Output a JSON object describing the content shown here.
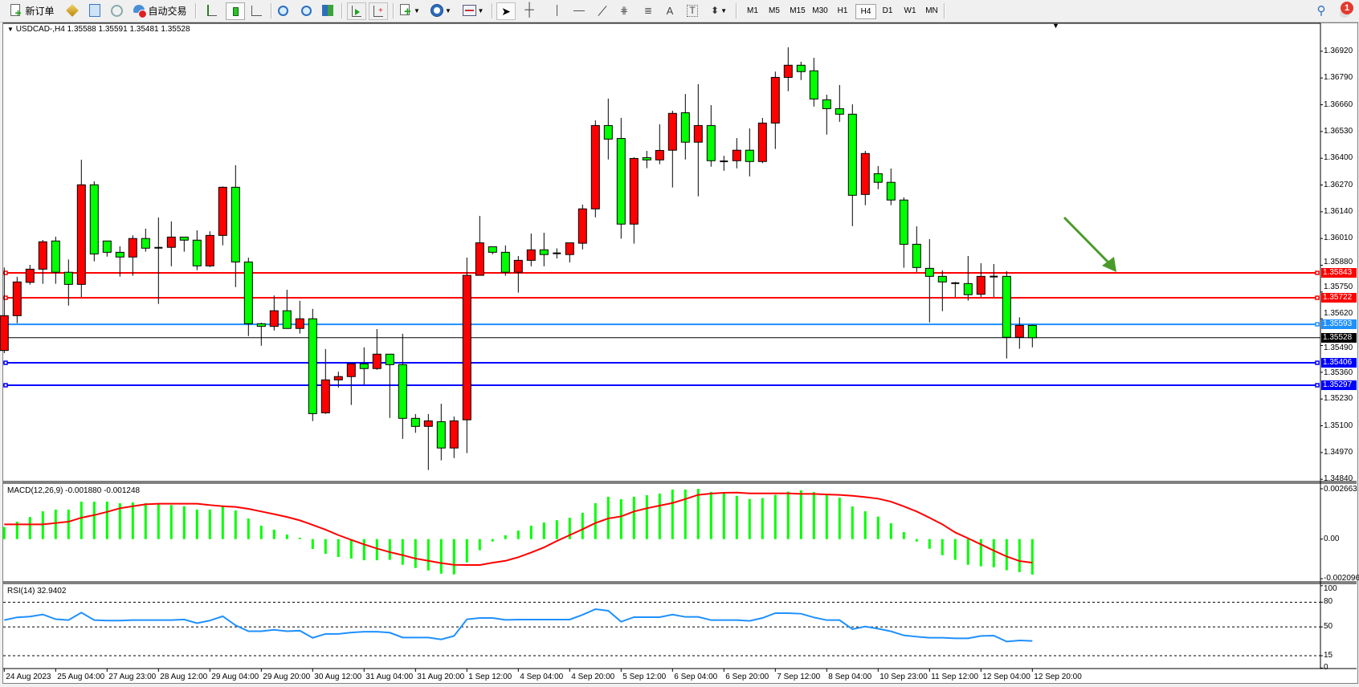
{
  "toolbar": {
    "new_order_label": "新订单",
    "auto_trading_label": "自动交易",
    "timeframes": [
      "M1",
      "M5",
      "M15",
      "M30",
      "H1",
      "H4",
      "D1",
      "W1",
      "MN"
    ],
    "active_timeframe": "H4",
    "notification_count": "1",
    "icons": [
      "new-order-icon",
      "market-watch-icon",
      "navigator-icon",
      "signals-icon",
      "auto-trading-icon",
      "bar-chart-icon",
      "candlestick-chart-icon",
      "line-chart-icon",
      "zoom-in-icon",
      "zoom-out-icon",
      "tile-windows-icon",
      "auto-scroll-icon",
      "chart-shift-icon",
      "indicators-icon",
      "periods-icon",
      "templates-icon",
      "cursor-icon",
      "crosshair-icon",
      "vertical-line-icon",
      "horizontal-line-icon",
      "trendline-icon",
      "fibonacci-icon",
      "fibo-fan-icon",
      "text-icon",
      "text-label-icon",
      "arrows-icon",
      "search-icon",
      "notification-icon"
    ]
  },
  "chart": {
    "symbol_header": "USDCAD-,H4  1.35588 1.35591 1.35481 1.35528",
    "macd_header": "MACD(12,26,9) -0.001880 -0.001248",
    "rsi_header": "RSI(14) 32.9402"
  },
  "chart_data": {
    "type": "candlestick",
    "symbol": "USDCAD-",
    "timeframe": "H4",
    "colors": {
      "up": "#ff0000",
      "down": "#00ff00",
      "outline": "#000000",
      "macd_hist": "#00ff00",
      "macd_signal": "#ff0000",
      "rsi": "#1e90ff",
      "arrow": "#4a9a2a"
    },
    "ohlc": [
      [
        1.35466,
        1.35869,
        1.35453,
        1.35635
      ],
      [
        1.35635,
        1.35824,
        1.35598,
        1.35799
      ],
      [
        1.35797,
        1.35882,
        1.35786,
        1.35861
      ],
      [
        1.35861,
        1.36003,
        1.3579,
        1.35994
      ],
      [
        1.35998,
        1.36019,
        1.3579,
        1.35846
      ],
      [
        1.35846,
        1.35908,
        1.35684,
        1.35787
      ],
      [
        1.35787,
        1.36393,
        1.35726,
        1.36271
      ],
      [
        1.36271,
        1.36288,
        1.35899,
        1.35935
      ],
      [
        1.35998,
        1.35998,
        1.35922,
        1.35943
      ],
      [
        1.35943,
        1.35972,
        1.35825,
        1.3592
      ],
      [
        1.3592,
        1.36026,
        1.35829,
        1.3601
      ],
      [
        1.3601,
        1.36058,
        1.35946,
        1.35963
      ],
      [
        1.35965,
        1.36112,
        1.35692,
        1.35965
      ],
      [
        1.35967,
        1.36093,
        1.35875,
        1.36017
      ],
      [
        1.36017,
        1.36017,
        1.35946,
        1.36002
      ],
      [
        1.36002,
        1.3605,
        1.35856,
        1.35877
      ],
      [
        1.35877,
        1.36045,
        1.35871,
        1.36025
      ],
      [
        1.36025,
        1.36263,
        1.35977,
        1.36259
      ],
      [
        1.36259,
        1.36366,
        1.35774,
        1.35896
      ],
      [
        1.35896,
        1.35917,
        1.35536,
        1.35596
      ],
      [
        1.35596,
        1.35601,
        1.35489,
        1.35583
      ],
      [
        1.35583,
        1.35733,
        1.35563,
        1.35659
      ],
      [
        1.35659,
        1.35761,
        1.35573,
        1.35573
      ],
      [
        1.35573,
        1.35707,
        1.35548,
        1.3562
      ],
      [
        1.3562,
        1.35668,
        1.35123,
        1.35159
      ],
      [
        1.35163,
        1.35473,
        1.35158,
        1.35323
      ],
      [
        1.35323,
        1.35363,
        1.35286,
        1.35339
      ],
      [
        1.35339,
        1.35401,
        1.35201,
        1.35401
      ],
      [
        1.35401,
        1.35481,
        1.353,
        1.35378
      ],
      [
        1.35378,
        1.3557,
        1.35372,
        1.35448
      ],
      [
        1.35448,
        1.35448,
        1.35138,
        1.35397
      ],
      [
        1.35397,
        1.35547,
        1.35036,
        1.35136
      ],
      [
        1.35136,
        1.35157,
        1.35066,
        1.35097
      ],
      [
        1.35097,
        1.35157,
        1.34885,
        1.35124
      ],
      [
        1.3512,
        1.35207,
        1.34932,
        1.34992
      ],
      [
        1.34992,
        1.35145,
        1.34943,
        1.35124
      ],
      [
        1.35129,
        1.35917,
        1.34967,
        1.35831
      ],
      [
        1.35831,
        1.3612,
        1.35831,
        1.35989
      ],
      [
        1.3597,
        1.3597,
        1.35933,
        1.35943
      ],
      [
        1.35943,
        1.35976,
        1.35829,
        1.35846
      ],
      [
        1.35846,
        1.35925,
        1.35747,
        1.35904
      ],
      [
        1.35904,
        1.36034,
        1.35875,
        1.35955
      ],
      [
        1.35955,
        1.36038,
        1.35875,
        1.35932
      ],
      [
        1.35938,
        1.35962,
        1.35913,
        1.35938
      ],
      [
        1.35932,
        1.35989,
        1.35894,
        1.35989
      ],
      [
        1.35987,
        1.36175,
        1.35957,
        1.36154
      ],
      [
        1.36154,
        1.36584,
        1.36113,
        1.36559
      ],
      [
        1.36559,
        1.3669,
        1.36394,
        1.36493
      ],
      [
        1.36496,
        1.36596,
        1.36009,
        1.3608
      ],
      [
        1.3608,
        1.36405,
        1.35985,
        1.36399
      ],
      [
        1.36403,
        1.36436,
        1.36352,
        1.36392
      ],
      [
        1.36392,
        1.36565,
        1.36371,
        1.36438
      ],
      [
        1.36439,
        1.36631,
        1.36258,
        1.36618
      ],
      [
        1.36621,
        1.36712,
        1.36394,
        1.36478
      ],
      [
        1.36478,
        1.3676,
        1.36215,
        1.36559
      ],
      [
        1.36559,
        1.36658,
        1.36359,
        1.36388
      ],
      [
        1.36385,
        1.36412,
        1.36339,
        1.36385
      ],
      [
        1.36388,
        1.36498,
        1.36351,
        1.36439
      ],
      [
        1.36439,
        1.36545,
        1.36312,
        1.36384
      ],
      [
        1.36384,
        1.36596,
        1.36376,
        1.36571
      ],
      [
        1.36571,
        1.36821,
        1.36445,
        1.36793
      ],
      [
        1.36793,
        1.36939,
        1.36726,
        1.36852
      ],
      [
        1.36852,
        1.36869,
        1.3678,
        1.36821
      ],
      [
        1.36825,
        1.36888,
        1.36651,
        1.36688
      ],
      [
        1.36684,
        1.36709,
        1.36515,
        1.36641
      ],
      [
        1.36641,
        1.36756,
        1.36577,
        1.36614
      ],
      [
        1.36614,
        1.36662,
        1.3607,
        1.3622
      ],
      [
        1.36224,
        1.36436,
        1.36172,
        1.36423
      ],
      [
        1.36325,
        1.36362,
        1.3625,
        1.36283
      ],
      [
        1.36283,
        1.3635,
        1.36172,
        1.36197
      ],
      [
        1.36197,
        1.3621,
        1.35868,
        1.35982
      ],
      [
        1.35982,
        1.36069,
        1.35847,
        1.35869
      ],
      [
        1.35865,
        1.36007,
        1.35602,
        1.35826
      ],
      [
        1.35826,
        1.35855,
        1.35657,
        1.35799
      ],
      [
        1.35793,
        1.35799,
        1.35726,
        1.35793
      ],
      [
        1.35791,
        1.35925,
        1.35708,
        1.35737
      ],
      [
        1.35739,
        1.3589,
        1.35726,
        1.35826
      ],
      [
        1.35825,
        1.35886,
        1.35726,
        1.35825
      ],
      [
        1.35826,
        1.35851,
        1.35427,
        1.3553
      ],
      [
        1.3553,
        1.35627,
        1.35474,
        1.35588
      ],
      [
        1.35588,
        1.35591,
        1.35481,
        1.35528
      ]
    ],
    "price_ticks": [
      "1.36920",
      "1.36790",
      "1.36660",
      "1.36530",
      "1.36400",
      "1.36270",
      "1.36140",
      "1.36010",
      "1.35880",
      "1.35750",
      "1.35620",
      "1.35490",
      "1.35360",
      "1.35230",
      "1.35100",
      "1.34970",
      "1.34840"
    ],
    "ylim": [
      1.3484,
      1.3692
    ],
    "horizontal_lines": [
      {
        "price": "1.35843",
        "color": "#ff0000"
      },
      {
        "price": "1.35722",
        "color": "#ff0000"
      },
      {
        "price": "1.35593",
        "color": "#1e90ff"
      },
      {
        "price": "1.35406",
        "color": "#0000ff"
      },
      {
        "price": "1.35297",
        "color": "#0000ff"
      }
    ],
    "bid_line": {
      "price": "1.35528",
      "color": "#000000"
    },
    "time_labels": [
      "24 Aug 2023",
      "25 Aug 04:00",
      "27 Aug 23:00",
      "28 Aug 12:00",
      "29 Aug 04:00",
      "29 Aug 20:00",
      "30 Aug 12:00",
      "31 Aug 04:00",
      "31 Aug 20:00",
      "1 Sep 12:00",
      "4 Sep 04:00",
      "4 Sep 20:00",
      "5 Sep 12:00",
      "6 Sep 04:00",
      "6 Sep 20:00",
      "7 Sep 12:00",
      "8 Sep 04:00",
      "10 Sep 23:00",
      "11 Sep 12:00",
      "12 Sep 04:00",
      "12 Sep 20:00"
    ],
    "time_label_every_bars": 4,
    "macd": {
      "axis_labels": [
        "0.002663",
        "0.00",
        "-0.002096"
      ],
      "ylim": [
        -0.002096,
        0.002663
      ],
      "histogram": [
        0.00064,
        0.00092,
        0.00117,
        0.00147,
        0.00156,
        0.00156,
        0.00198,
        0.00198,
        0.00198,
        0.0019,
        0.00194,
        0.0019,
        0.00184,
        0.0018,
        0.00174,
        0.00156,
        0.00156,
        0.00174,
        0.00151,
        0.00109,
        0.00071,
        0.0005,
        0.00024,
        7e-05,
        -0.00052,
        -0.00078,
        -0.00095,
        -0.00103,
        -0.00112,
        -0.00112,
        -0.0011,
        -0.00136,
        -0.00153,
        -0.00166,
        -0.00183,
        -0.00187,
        -0.00123,
        -0.00059,
        -0.00013,
        0.0002,
        0.00045,
        0.00071,
        0.00088,
        0.001,
        0.00113,
        0.00139,
        0.0019,
        0.00224,
        0.00211,
        0.00224,
        0.00232,
        0.00241,
        0.00262,
        0.00262,
        0.00266,
        0.00249,
        0.00241,
        0.00229,
        0.00212,
        0.00217,
        0.00234,
        0.00251,
        0.00258,
        0.00249,
        0.00232,
        0.00219,
        0.00173,
        0.00147,
        0.00119,
        0.00084,
        0.00037,
        -0.00013,
        -0.00051,
        -0.00085,
        -0.0011,
        -0.00136,
        -0.00144,
        -0.00149,
        -0.00165,
        -0.00175,
        -0.00188
      ],
      "signal": [
        0.00078,
        0.00078,
        0.00078,
        0.00078,
        0.00085,
        0.00092,
        0.00113,
        0.00127,
        0.00144,
        0.00163,
        0.00174,
        0.00184,
        0.00187,
        0.00187,
        0.00187,
        0.00187,
        0.0018,
        0.00174,
        0.0017,
        0.0016,
        0.00146,
        0.00132,
        0.00117,
        0.00099,
        0.00075,
        0.0005,
        0.00021,
        -4e-05,
        -0.00028,
        -0.0005,
        -0.00069,
        -0.00085,
        -0.00103,
        -0.00115,
        -0.00127,
        -0.00136,
        -0.00137,
        -0.00137,
        -0.00125,
        -0.00115,
        -0.00096,
        -0.00071,
        -0.00044,
        -0.0001,
        0.00021,
        0.00052,
        0.00085,
        0.00109,
        0.0012,
        0.00146,
        0.00163,
        0.00177,
        0.00191,
        0.00212,
        0.00234,
        0.00241,
        0.00245,
        0.00246,
        0.00242,
        0.00242,
        0.00242,
        0.00242,
        0.00239,
        0.00239,
        0.00236,
        0.00234,
        0.00229,
        0.00222,
        0.00214,
        0.00198,
        0.00173,
        0.00146,
        0.00113,
        0.00078,
        0.00035,
        4e-05,
        -0.00028,
        -0.00061,
        -0.00092,
        -0.00116,
        -0.001248
      ]
    },
    "rsi": {
      "axis_labels": [
        "100",
        "80",
        "50",
        "15",
        "0"
      ],
      "levels": [
        80,
        50,
        15
      ],
      "ylim": [
        0,
        100
      ],
      "values": [
        58.3,
        61.6,
        62.5,
        65.1,
        59.3,
        58.3,
        67.4,
        58.3,
        57.7,
        57.7,
        58.3,
        58.3,
        58.3,
        58.3,
        59,
        54.5,
        57.7,
        62.9,
        51.9,
        44.7,
        44.7,
        46.4,
        44.7,
        45.4,
        36.7,
        41.5,
        41.5,
        43.1,
        44.1,
        44.1,
        43,
        37.1,
        37.1,
        37.1,
        34.8,
        39,
        59.2,
        60.8,
        60.8,
        58.5,
        58.9,
        58.9,
        58.9,
        58.9,
        58.9,
        64.7,
        71.5,
        69.6,
        56.3,
        61.8,
        61.8,
        61.8,
        65,
        62.1,
        62.1,
        58.2,
        58.2,
        58.2,
        57.3,
        60.8,
        66.7,
        66.7,
        66,
        61.5,
        58.2,
        58.2,
        47.2,
        50.4,
        47.8,
        44.6,
        39.7,
        38.1,
        36.8,
        36.8,
        36.1,
        36.1,
        39,
        39.4,
        32.2,
        33.5,
        32.9402
      ]
    },
    "annotation": {
      "type": "arrow",
      "color": "#4a9a2a"
    }
  }
}
